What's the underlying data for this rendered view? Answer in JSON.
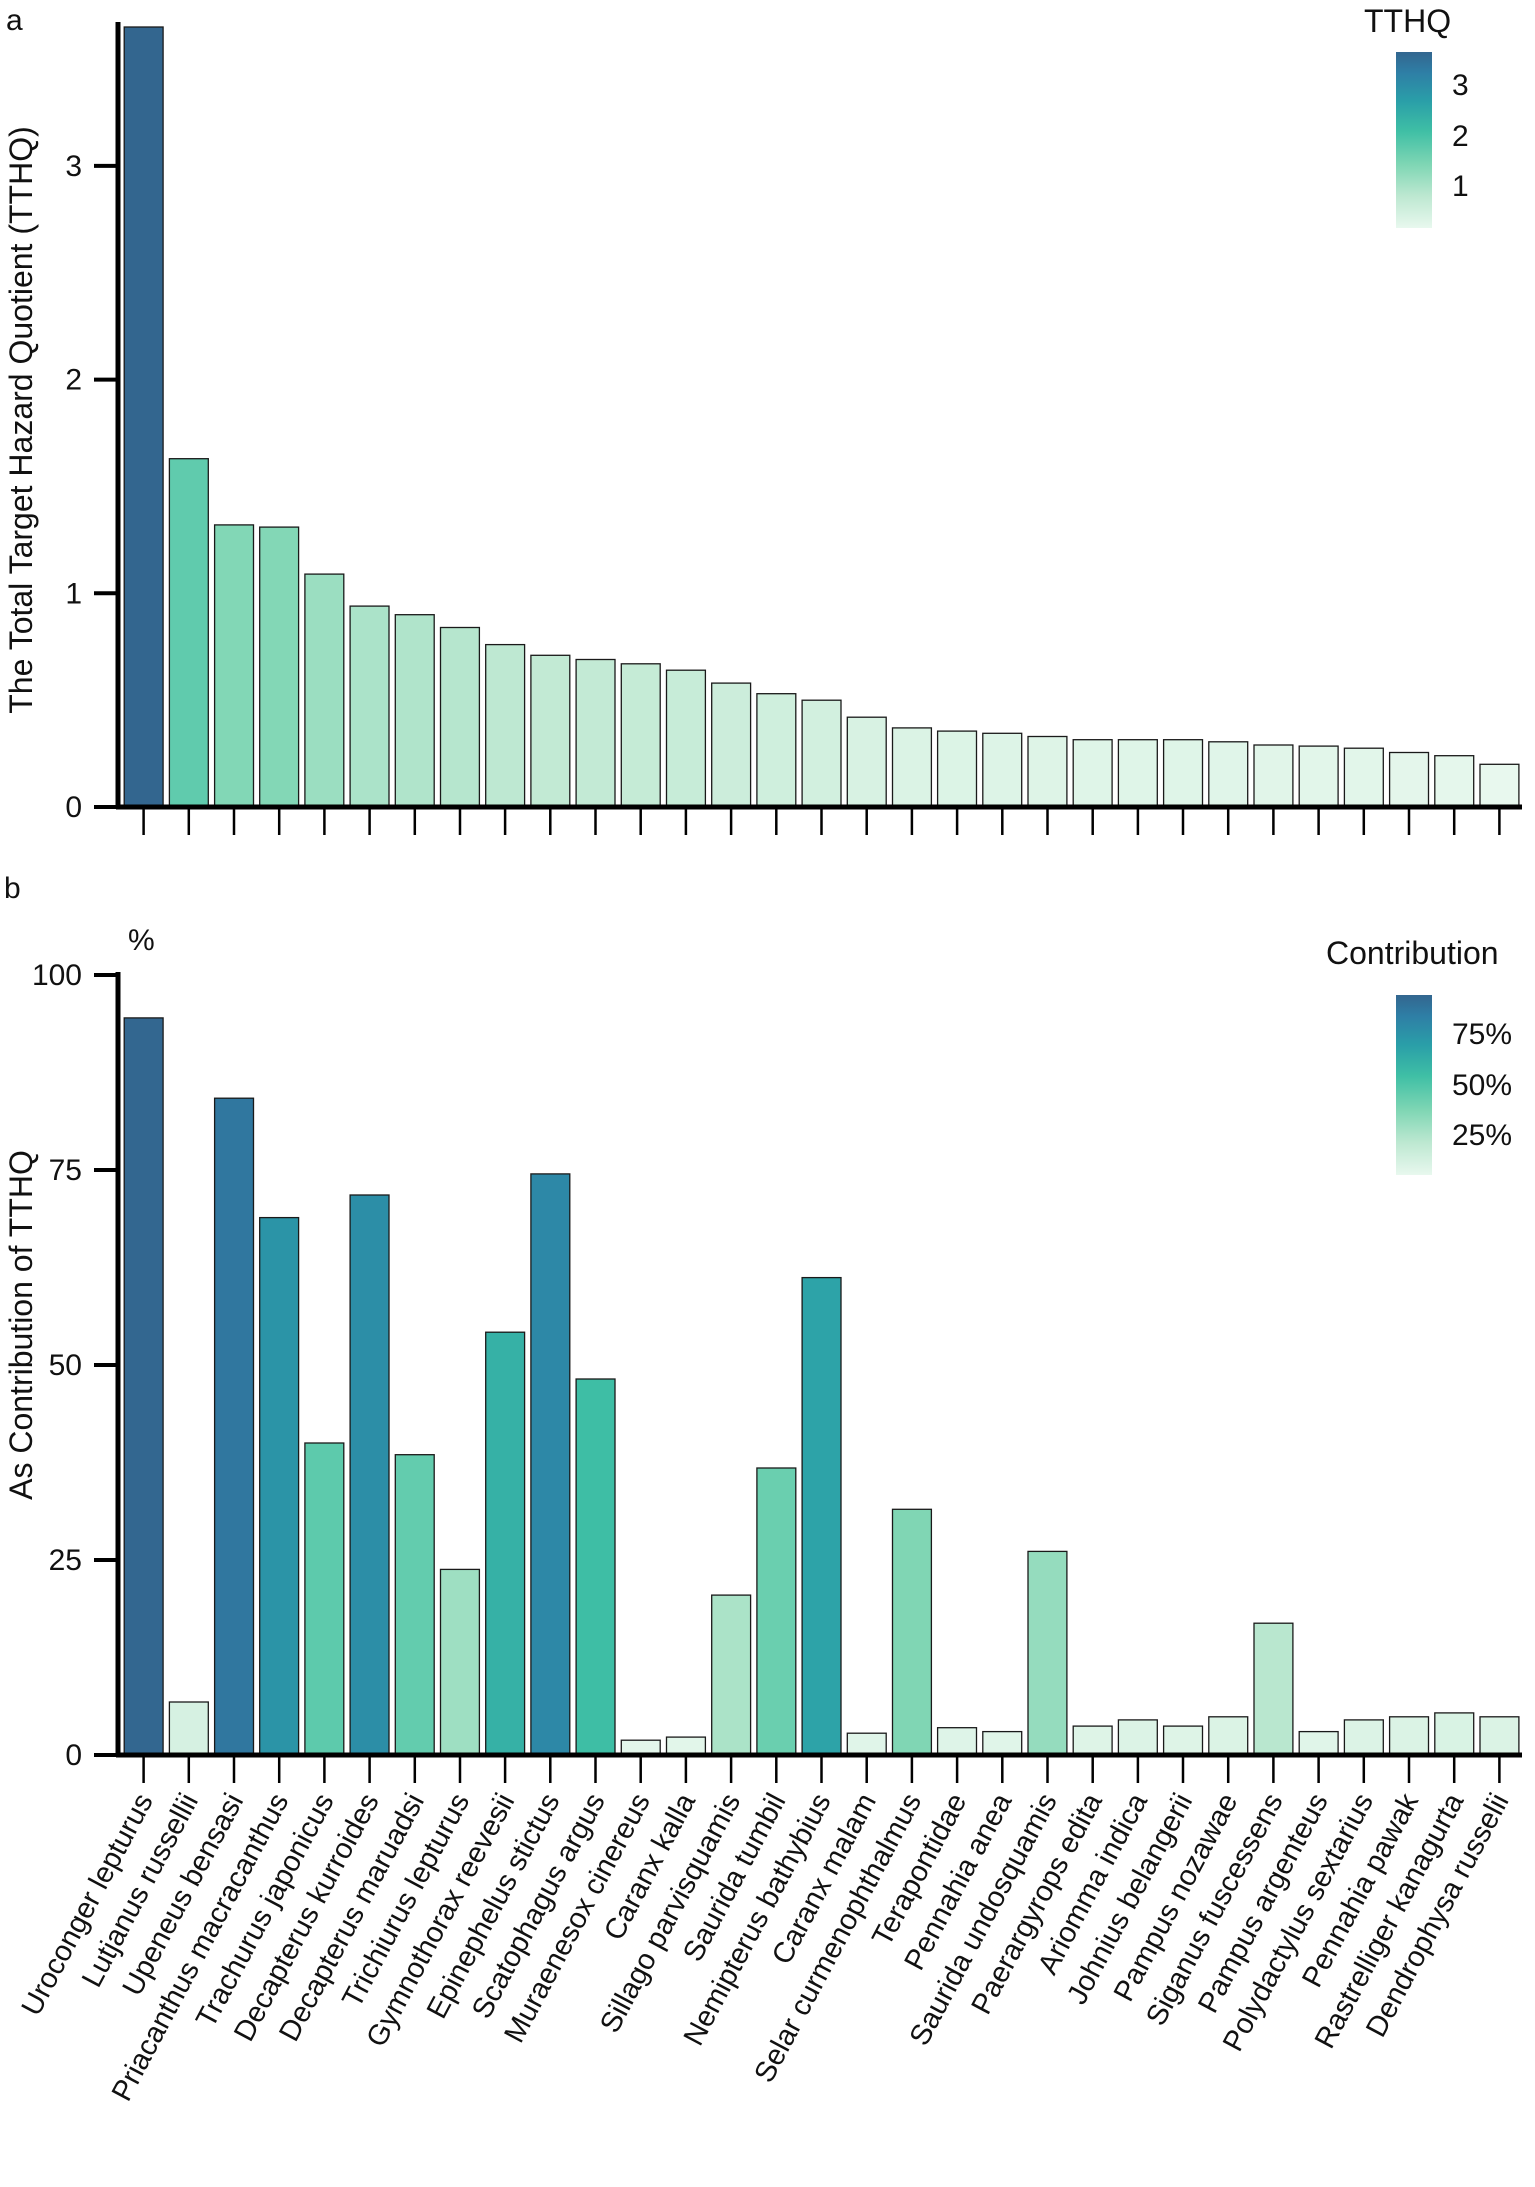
{
  "figure": {
    "panel_a_label": "a",
    "panel_b_label": "b",
    "percent_symbol": "%"
  },
  "palette": [
    "#e8f8ee",
    "#bde8d1",
    "#7fd6b4",
    "#3fbfa5",
    "#2a9fa8",
    "#2e7fa6",
    "#33668f"
  ],
  "chart_data": [
    {
      "type": "bar",
      "id": "tthq",
      "categories": [
        "Uroconger lepturus",
        "Lutjanus russellii",
        "Upeneus bensasi",
        "Priacanthus macracanthus",
        "Trachurus japonicus",
        "Decapterus kurroides",
        "Decapterus maruadsi",
        "Trichiurus lepturus",
        "Gymnothorax reevesii",
        "Epinephelus stictus",
        "Scatophagus argus",
        "Muraenesox cinereus",
        "Caranx kalla",
        "Sillago parvisquamis",
        "Saurida tumbil",
        "Nemipterus bathybius",
        "Caranx malam",
        "Selar curmenophthalmus",
        "Terapontidae",
        "Pennahia anea",
        "Saurida undosquamis",
        "Paerargyrops edita",
        "Ariomma indica",
        "Johnius belangerii",
        "Pampus nozawae",
        "Siganus fuscessens",
        "Pampus argenteus",
        "Polydactylus sextarius",
        "Pennahia pawak",
        "Rastrelliger kanagurta",
        "Dendrophysa russelii"
      ],
      "values": [
        3.65,
        1.63,
        1.32,
        1.31,
        1.09,
        0.94,
        0.9,
        0.84,
        0.76,
        0.71,
        0.69,
        0.67,
        0.64,
        0.58,
        0.53,
        0.5,
        0.42,
        0.37,
        0.355,
        0.345,
        0.33,
        0.315,
        0.315,
        0.315,
        0.305,
        0.29,
        0.285,
        0.275,
        0.255,
        0.24,
        0.2
      ],
      "title": "",
      "xlabel": "",
      "ylabel": "The Total Target Hazard Quotient (TTHQ)",
      "ylim": [
        0,
        3.65
      ],
      "yticks": [
        0,
        1,
        2,
        3
      ],
      "ytick_labels": [
        "0",
        "1",
        "2",
        "3"
      ],
      "legend": {
        "title": "TTHQ",
        "labels": [
          "3",
          "2",
          "1"
        ],
        "position": "top-right"
      },
      "color_range": [
        0.2,
        3.65
      ]
    },
    {
      "type": "bar",
      "id": "contribution",
      "categories": [
        "Uroconger lepturus",
        "Lutjanus russellii",
        "Upeneus bensasi",
        "Priacanthus macracanthus",
        "Trachurus japonicus",
        "Decapterus kurroides",
        "Decapterus maruadsi",
        "Trichiurus lepturus",
        "Gymnothorax reevesii",
        "Epinephelus stictus",
        "Scatophagus argus",
        "Muraenesox cinereus",
        "Caranx kalla",
        "Sillago parvisquamis",
        "Saurida tumbil",
        "Nemipterus bathybius",
        "Caranx malam",
        "Selar curmenophthalmus",
        "Terapontidae",
        "Pennahia anea",
        "Saurida undosquamis",
        "Paerargyrops edita",
        "Ariomma indica",
        "Johnius belangerii",
        "Pampus nozawae",
        "Siganus fuscessens",
        "Pampus argenteus",
        "Polydactylus sextarius",
        "Pennahia pawak",
        "Rastrelliger kanagurta",
        "Dendrophysa russelii"
      ],
      "values": [
        94.5,
        6.8,
        84.2,
        68.9,
        40.0,
        71.8,
        38.5,
        23.8,
        54.2,
        74.5,
        48.2,
        1.9,
        2.3,
        20.5,
        36.8,
        61.2,
        2.8,
        31.5,
        3.5,
        3.0,
        26.1,
        3.7,
        4.5,
        3.7,
        4.9,
        16.9,
        3.0,
        4.5,
        4.9,
        5.4,
        4.9
      ],
      "title": "",
      "xlabel": "",
      "ylabel": "As Contribution of TTHQ",
      "yunit": "%",
      "ylim": [
        0,
        100
      ],
      "yticks": [
        0,
        25,
        50,
        75,
        100
      ],
      "ytick_labels": [
        "0",
        "25",
        "50",
        "75",
        "100"
      ],
      "legend": {
        "title": "Contribution",
        "labels": [
          "75%",
          "50%",
          "25%"
        ],
        "position": "top-right"
      },
      "color_range": [
        0,
        95
      ]
    }
  ]
}
